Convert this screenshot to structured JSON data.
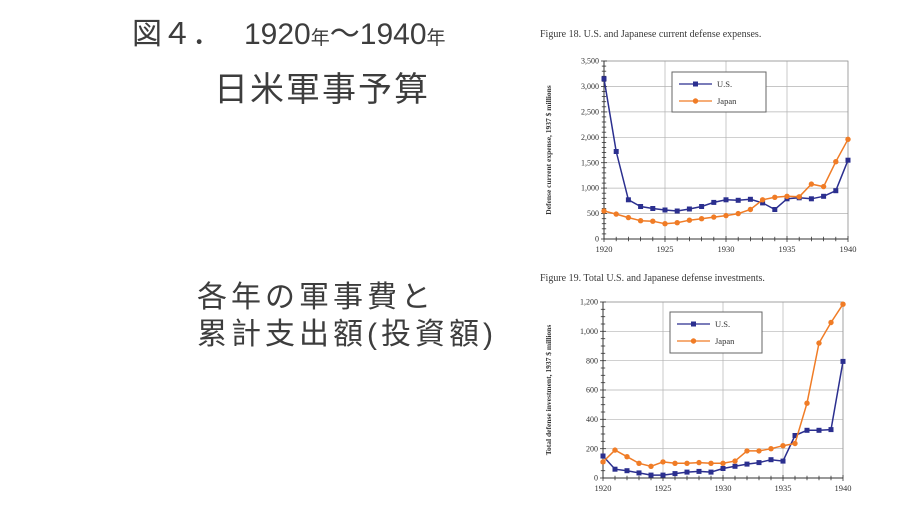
{
  "slide": {
    "title_line1": {
      "prefix": "図４．",
      "year_start": "1920",
      "nen1": "年",
      "tilde": "～",
      "year_end": "1940",
      "nen2": "年"
    },
    "title_line2": "日米軍事予算",
    "body_line1": "各年の軍事費と",
    "body_line2": "累計支出額(投資額)"
  },
  "colors": {
    "us_series": "#2B2F8F",
    "japan_series": "#F07C26",
    "grid": "#B3B3B3",
    "plot_border": "#999999",
    "axis": "#333333",
    "tick_text": "#333333",
    "slide_text": "#3D3D3D",
    "background": "#FFFFFF"
  },
  "chart_data": [
    {
      "type": "line",
      "title": "Figure 18. U.S. and Japanese current defense expenses.",
      "ylabel": "Defense current expense, 1937 $ millions",
      "xlabel": "",
      "grid": true,
      "legend_position": "top-center",
      "x": [
        1920,
        1921,
        1922,
        1923,
        1924,
        1925,
        1926,
        1927,
        1928,
        1929,
        1930,
        1931,
        1932,
        1933,
        1934,
        1935,
        1936,
        1937,
        1938,
        1939,
        1940
      ],
      "x_major": [
        1920,
        1925,
        1930,
        1935,
        1940
      ],
      "x_tick_labels": [
        "1920",
        "1925",
        "1930",
        "1935",
        "1940"
      ],
      "ylim": [
        0,
        3500
      ],
      "y_major_step": 500,
      "y_minor_step": 100,
      "y_tick_labels": [
        "0",
        "500",
        "1,000",
        "1,500",
        "2,000",
        "2,500",
        "3,000",
        "3,500"
      ],
      "series": [
        {
          "name": "U.S.",
          "marker": "square",
          "color": "#2B2F8F",
          "values": [
            3150,
            1720,
            770,
            640,
            600,
            570,
            550,
            590,
            640,
            720,
            770,
            760,
            780,
            710,
            580,
            790,
            810,
            790,
            840,
            950,
            1550
          ]
        },
        {
          "name": "Japan",
          "marker": "circle",
          "color": "#F07C26",
          "values": [
            550,
            490,
            420,
            360,
            350,
            300,
            320,
            370,
            400,
            430,
            460,
            500,
            580,
            770,
            820,
            840,
            830,
            1080,
            1030,
            1520,
            1960
          ]
        }
      ]
    },
    {
      "type": "line",
      "title": "Figure 19. Total U.S. and Japanese defense investments.",
      "ylabel": "Total defense investment, 1937 $ millions",
      "xlabel": "",
      "grid": true,
      "legend_position": "top-center",
      "x": [
        1920,
        1921,
        1922,
        1923,
        1924,
        1925,
        1926,
        1927,
        1928,
        1929,
        1930,
        1931,
        1932,
        1933,
        1934,
        1935,
        1936,
        1937,
        1938,
        1939,
        1940
      ],
      "x_major": [
        1920,
        1925,
        1930,
        1935,
        1940
      ],
      "x_tick_labels": [
        "1920",
        "1925",
        "1930",
        "1935",
        "1940"
      ],
      "ylim": [
        0,
        1200
      ],
      "y_major_step": 200,
      "y_minor_step": 50,
      "y_tick_labels": [
        "0",
        "200",
        "400",
        "600",
        "800",
        "1,000",
        "1,200"
      ],
      "series": [
        {
          "name": "U.S.",
          "marker": "square",
          "color": "#2B2F8F",
          "values": [
            150,
            60,
            50,
            35,
            20,
            20,
            30,
            40,
            45,
            40,
            65,
            80,
            95,
            105,
            125,
            115,
            290,
            325,
            325,
            330,
            795
          ]
        },
        {
          "name": "Japan",
          "marker": "circle",
          "color": "#F07C26",
          "values": [
            110,
            190,
            145,
            100,
            80,
            110,
            100,
            100,
            105,
            100,
            100,
            115,
            185,
            185,
            200,
            220,
            235,
            510,
            920,
            1060,
            1185
          ]
        }
      ]
    }
  ]
}
